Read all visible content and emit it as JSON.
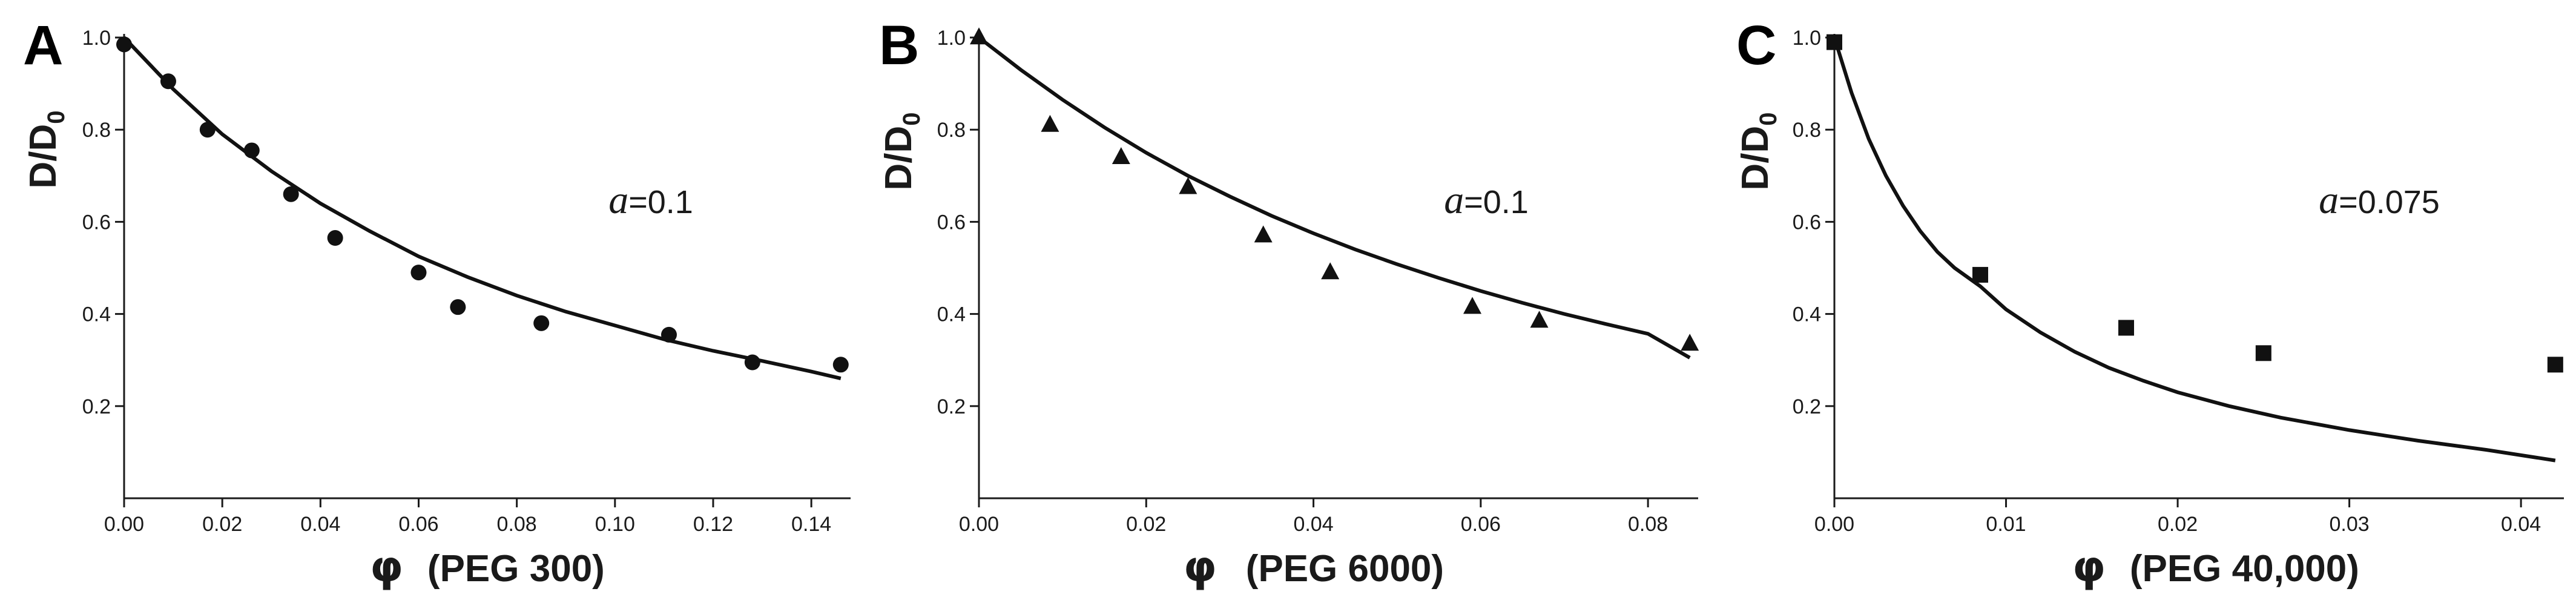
{
  "chart_data": [
    {
      "type": "scatter",
      "panel_label": "A",
      "xlabel_symbol": "φ",
      "xlabel": "(PEG 300)",
      "ylabel_main": "D/D",
      "ylabel_sub": "0",
      "annotation_var": "a",
      "annotation_value": "=0.1",
      "xlim": [
        0,
        0.148
      ],
      "ylim": [
        0,
        1.0
      ],
      "xticks": [
        "0.00",
        "0.02",
        "0.04",
        "0.06",
        "0.08",
        "0.10",
        "0.12",
        "0.14"
      ],
      "yticks": [
        "0.2",
        "0.4",
        "0.6",
        "0.8",
        "1.0"
      ],
      "marker": "circle",
      "series": [
        {
          "x": [
            0.0,
            0.009,
            0.017,
            0.026,
            0.034,
            0.043,
            0.06,
            0.068,
            0.085,
            0.111,
            0.128,
            0.146
          ],
          "y": [
            0.985,
            0.905,
            0.8,
            0.755,
            0.66,
            0.565,
            0.49,
            0.415,
            0.38,
            0.355,
            0.295,
            0.29
          ]
        }
      ],
      "fit": {
        "x": [
          0.0,
          0.01,
          0.02,
          0.03,
          0.04,
          0.05,
          0.06,
          0.07,
          0.08,
          0.09,
          0.1,
          0.11,
          0.12,
          0.13,
          0.14,
          0.146
        ],
        "y": [
          1.0,
          0.888,
          0.79,
          0.71,
          0.64,
          0.58,
          0.525,
          0.48,
          0.44,
          0.405,
          0.375,
          0.345,
          0.32,
          0.298,
          0.275,
          0.26
        ]
      }
    },
    {
      "type": "scatter",
      "panel_label": "B",
      "xlabel_symbol": "φ",
      "xlabel": "(PEG 6000)",
      "ylabel_main": "D/D",
      "ylabel_sub": "0",
      "annotation_var": "a",
      "annotation_value": "=0.1",
      "xlim": [
        0,
        0.086
      ],
      "ylim": [
        0,
        1.0
      ],
      "xticks": [
        "0.00",
        "0.02",
        "0.04",
        "0.06",
        "0.08"
      ],
      "yticks": [
        "0.2",
        "0.4",
        "0.6",
        "0.8",
        "1.0"
      ],
      "marker": "triangle",
      "series": [
        {
          "x": [
            0.0,
            0.0085,
            0.017,
            0.025,
            0.034,
            0.042,
            0.059,
            0.067,
            0.085
          ],
          "y": [
            1.0,
            0.81,
            0.74,
            0.675,
            0.57,
            0.49,
            0.415,
            0.385,
            0.335
          ]
        }
      ],
      "fit": {
        "x": [
          0.0,
          0.005,
          0.01,
          0.015,
          0.02,
          0.025,
          0.03,
          0.035,
          0.04,
          0.045,
          0.05,
          0.055,
          0.06,
          0.065,
          0.07,
          0.075,
          0.08,
          0.085
        ],
        "y": [
          1.0,
          0.93,
          0.865,
          0.805,
          0.75,
          0.7,
          0.655,
          0.613,
          0.575,
          0.54,
          0.508,
          0.478,
          0.45,
          0.424,
          0.4,
          0.378,
          0.357,
          0.305
        ]
      }
    },
    {
      "type": "scatter",
      "panel_label": "C",
      "xlabel_symbol": "φ",
      "xlabel": "(PEG 40,000)",
      "ylabel_main": "D/D",
      "ylabel_sub": "0",
      "annotation_var": "a",
      "annotation_value": "=0.075",
      "xlim": [
        0,
        0.0425
      ],
      "ylim": [
        0,
        1.0
      ],
      "xticks": [
        "0.00",
        "0.01",
        "0.02",
        "0.03",
        "0.04"
      ],
      "yticks": [
        "0.2",
        "0.4",
        "0.6",
        "0.8",
        "1.0"
      ],
      "marker": "square",
      "series": [
        {
          "x": [
            0.0,
            0.0085,
            0.017,
            0.025,
            0.042
          ],
          "y": [
            0.99,
            0.485,
            0.37,
            0.315,
            0.29
          ]
        }
      ],
      "fit": {
        "x": [
          0.0,
          0.001,
          0.002,
          0.003,
          0.004,
          0.005,
          0.006,
          0.007,
          0.0085,
          0.01,
          0.012,
          0.014,
          0.016,
          0.018,
          0.02,
          0.023,
          0.026,
          0.03,
          0.034,
          0.038,
          0.042
        ],
        "y": [
          1.0,
          0.88,
          0.78,
          0.7,
          0.635,
          0.58,
          0.535,
          0.5,
          0.46,
          0.41,
          0.36,
          0.318,
          0.283,
          0.255,
          0.23,
          0.2,
          0.175,
          0.148,
          0.125,
          0.105,
          0.082
        ]
      }
    }
  ]
}
